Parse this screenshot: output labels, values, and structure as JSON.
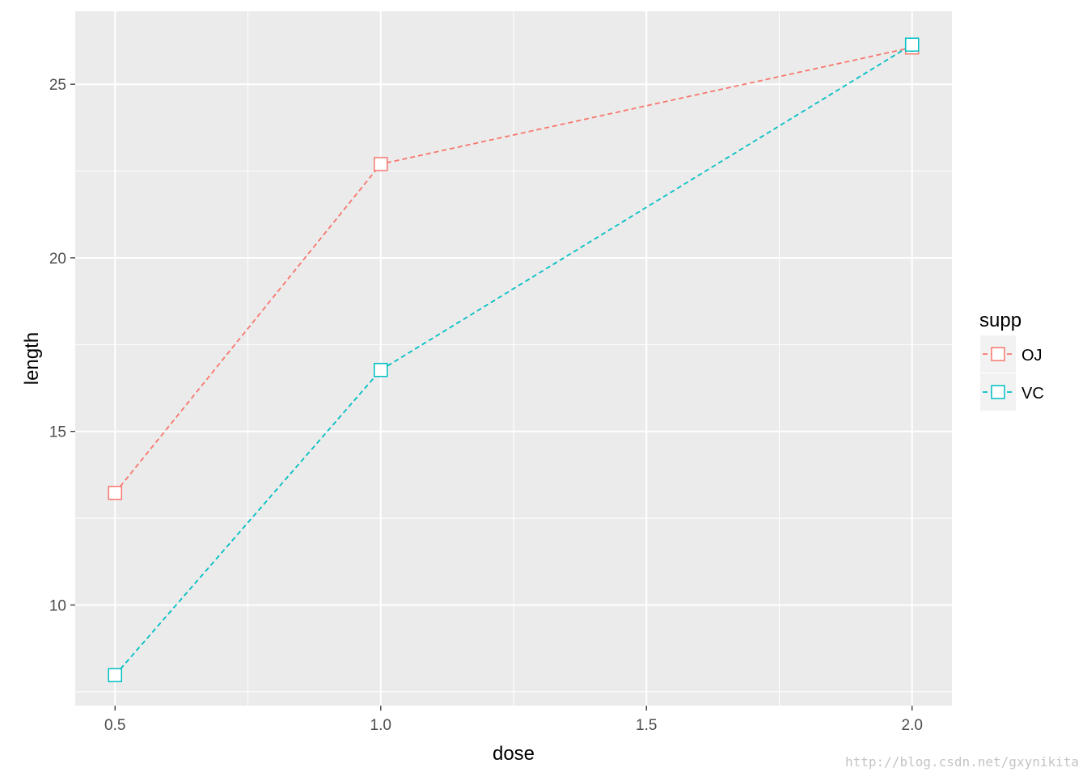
{
  "chart_data": {
    "type": "line",
    "xlabel": "dose",
    "ylabel": "length",
    "x": [
      0.5,
      1.0,
      2.0
    ],
    "xlim": [
      0.425,
      2.075
    ],
    "ylim": [
      7.1,
      27.1
    ],
    "x_ticks": [
      0.5,
      1.0,
      1.5,
      2.0
    ],
    "x_tick_labels": [
      "0.5",
      "1.0",
      "1.5",
      "2.0"
    ],
    "y_ticks": [
      10,
      15,
      20,
      25
    ],
    "y_tick_labels": [
      "10",
      "15",
      "20",
      "25"
    ],
    "grid": true,
    "line_style": "dashed",
    "marker": "open-square",
    "legend": {
      "title": "supp",
      "placement": "right"
    },
    "series": [
      {
        "name": "OJ",
        "color": "#F8766D",
        "values": [
          13.23,
          22.7,
          26.06
        ]
      },
      {
        "name": "VC",
        "color": "#00BFC4",
        "values": [
          7.98,
          16.77,
          26.14
        ]
      }
    ]
  },
  "watermark": "http://blog.csdn.net/gxynikita"
}
